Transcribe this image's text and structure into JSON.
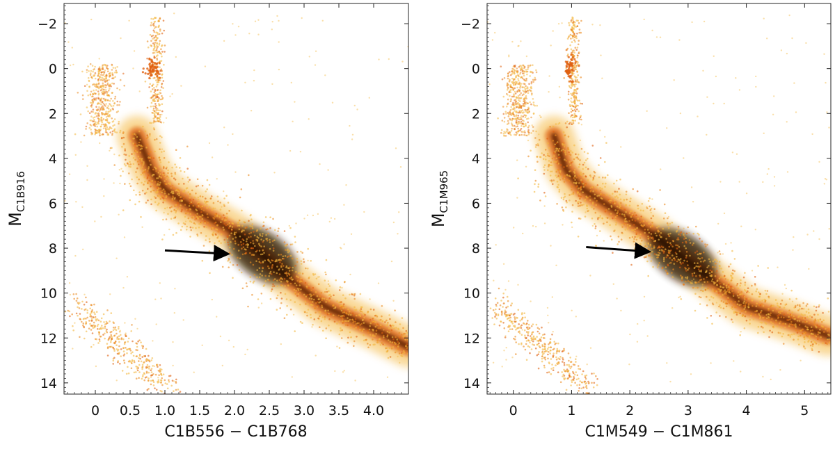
{
  "chart_data": [
    {
      "type": "scatter",
      "panel": "left",
      "xlabel": "C1B556 − C1B768",
      "ylabel_main": "M",
      "ylabel_sub": "C1B916",
      "xlim": [
        -0.45,
        4.5
      ],
      "ylim": [
        14.5,
        -2.9
      ],
      "y_inverted": true,
      "xticks": [
        0,
        0.5,
        1.0,
        1.5,
        2.0,
        2.5,
        3.0,
        3.5,
        4.0
      ],
      "xtick_labels": [
        "0",
        "0.5",
        "1.0",
        "1.5",
        "2.0",
        "2.5",
        "3.0",
        "3.5",
        "4.0"
      ],
      "yticks": [
        -2,
        0,
        2,
        4,
        6,
        8,
        10,
        12,
        14
      ],
      "ytick_labels": [
        "−2",
        "0",
        "2",
        "4",
        "6",
        "8",
        "10",
        "12",
        "14"
      ],
      "density_description": "Hess diagram: main sequence from (0.6, 3) bending through (0.9, 5) to (2.4, 8.3) and (4.4, 12.3); turnoff/upper MS near (0.2–0.5, 0–2); red giant branch to (0.9, -2); red clump near (0.85, 0); white dwarf sequence from (-0.25, 10.6) to (1.0, 14.2)",
      "ridge": [
        [
          0.6,
          3.0
        ],
        [
          0.8,
          4.5
        ],
        [
          1.0,
          5.4
        ],
        [
          1.5,
          6.4
        ],
        [
          2.0,
          7.3
        ],
        [
          2.4,
          8.3
        ],
        [
          2.8,
          9.4
        ],
        [
          3.3,
          10.6
        ],
        [
          4.0,
          11.6
        ],
        [
          4.5,
          12.4
        ]
      ],
      "arrow": {
        "from": [
          1.0,
          8.1
        ],
        "to": [
          1.88,
          8.25
        ]
      },
      "colors": {
        "low": "#f4b840",
        "mid": "#e06010",
        "high": "#000000"
      }
    },
    {
      "type": "scatter",
      "panel": "right",
      "xlabel": "C1M549 − C1M861",
      "ylabel_main": "M",
      "ylabel_sub": "C1M965",
      "xlim": [
        -0.45,
        5.45
      ],
      "ylim": [
        14.5,
        -2.9
      ],
      "y_inverted": true,
      "xticks": [
        0,
        1,
        2,
        3,
        4,
        5
      ],
      "xtick_labels": [
        "0",
        "1",
        "2",
        "3",
        "4",
        "5"
      ],
      "yticks": [
        -2,
        0,
        2,
        4,
        6,
        8,
        10,
        12,
        14
      ],
      "ytick_labels": [
        "−2",
        "0",
        "2",
        "4",
        "6",
        "8",
        "10",
        "12",
        "14"
      ],
      "density_description": "Hess diagram: main sequence from (0.7, 3) through (1.1, 5) to (2.9, 8.5) and (5.3, 11.8); upper MS near (0.2–0.6, 0–2); red giant branch to (1.1, -2); white dwarf sequence from (-0.3, 10.6) to (1.3, 14.2)",
      "ridge": [
        [
          0.7,
          3.0
        ],
        [
          0.9,
          4.5
        ],
        [
          1.2,
          5.4
        ],
        [
          1.8,
          6.4
        ],
        [
          2.4,
          7.4
        ],
        [
          2.9,
          8.4
        ],
        [
          3.4,
          9.4
        ],
        [
          4.0,
          10.6
        ],
        [
          4.8,
          11.3
        ],
        [
          5.4,
          11.9
        ]
      ],
      "arrow": {
        "from": [
          1.25,
          7.95
        ],
        "to": [
          2.3,
          8.15
        ]
      },
      "colors": {
        "low": "#f4b840",
        "mid": "#e06010",
        "high": "#000000"
      }
    }
  ]
}
